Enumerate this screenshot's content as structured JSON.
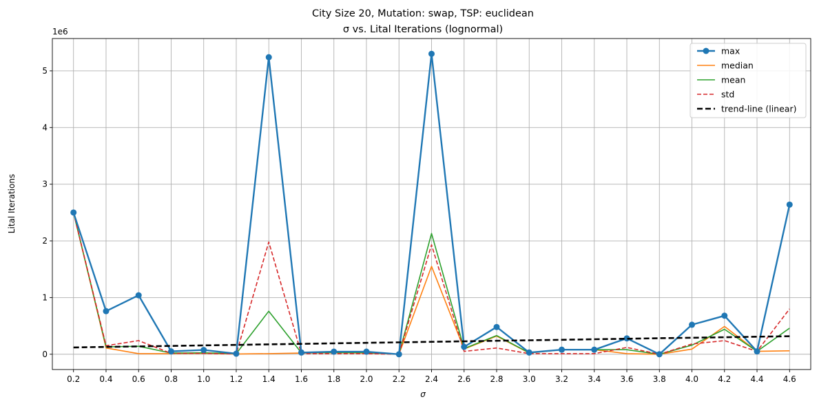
{
  "chart_data": {
    "type": "line",
    "title_line1": "City Size 20, Mutation: swap, TSP: euclidean",
    "title_line2": "σ vs. Lital Iterations (lognormal)",
    "xlabel": "σ",
    "ylabel": "Lital Iterations",
    "y_offset_text": "1e6",
    "ylim": [
      -270000,
      5570000
    ],
    "y_ticks": [
      0,
      1000000,
      2000000,
      3000000,
      4000000,
      5000000
    ],
    "y_tick_labels": [
      "0",
      "1",
      "2",
      "3",
      "4",
      "5"
    ],
    "x": [
      0.2,
      0.4,
      0.6,
      0.8,
      1.0,
      1.2,
      1.4,
      1.6,
      1.8,
      2.0,
      2.2,
      2.4,
      2.6,
      2.8,
      3.0,
      3.2,
      3.4,
      3.6,
      3.8,
      4.0,
      4.2,
      4.4,
      4.6
    ],
    "x_tick_labels": [
      "0.2",
      "0.4",
      "0.6",
      "0.8",
      "1.0",
      "1.2",
      "1.4",
      "1.6",
      "1.8",
      "2.0",
      "2.2",
      "2.4",
      "2.6",
      "2.8",
      "3.0",
      "3.2",
      "3.4",
      "3.6",
      "3.8",
      "4.0",
      "4.2",
      "4.4",
      "4.6"
    ],
    "xlim": [
      0.07,
      4.73
    ],
    "grid": true,
    "legend_position": "top-right",
    "series": [
      {
        "name": "max",
        "color": "#1f77b4",
        "style": "solid-marker",
        "values": [
          2500000,
          760000,
          1040000,
          50000,
          75000,
          10000,
          5240000,
          30000,
          45000,
          45000,
          0,
          5300000,
          130000,
          480000,
          30000,
          80000,
          80000,
          280000,
          0,
          520000,
          680000,
          50000,
          2640000
        ]
      },
      {
        "name": "median",
        "color": "#ff7f0e",
        "style": "solid",
        "values": [
          2500000,
          110000,
          10000,
          10000,
          15000,
          5000,
          10000,
          20000,
          25000,
          20000,
          0,
          1550000,
          90000,
          320000,
          20000,
          80000,
          80000,
          10000,
          0,
          90000,
          490000,
          50000,
          60000
        ]
      },
      {
        "name": "mean",
        "color": "#2ca02c",
        "style": "solid",
        "values": [
          2500000,
          130000,
          140000,
          20000,
          25000,
          10000,
          760000,
          25000,
          30000,
          30000,
          0,
          2130000,
          100000,
          330000,
          25000,
          80000,
          80000,
          80000,
          0,
          160000,
          440000,
          50000,
          460000
        ]
      },
      {
        "name": "std",
        "color": "#d62728",
        "style": "dashed",
        "values": [
          2500000,
          150000,
          240000,
          15000,
          15000,
          5000,
          1980000,
          10000,
          10000,
          10000,
          0,
          1930000,
          50000,
          110000,
          10000,
          10000,
          10000,
          120000,
          0,
          180000,
          240000,
          50000,
          800000
        ]
      },
      {
        "name": "trend-line (linear)",
        "color": "#000000",
        "style": "dashed-bold",
        "values": [
          120000,
          129000,
          138000,
          147000,
          156000,
          165000,
          174000,
          183000,
          192000,
          201000,
          210000,
          219000,
          228000,
          237000,
          246000,
          255000,
          264000,
          273000,
          282000,
          291000,
          300000,
          309000,
          318000
        ]
      }
    ]
  }
}
